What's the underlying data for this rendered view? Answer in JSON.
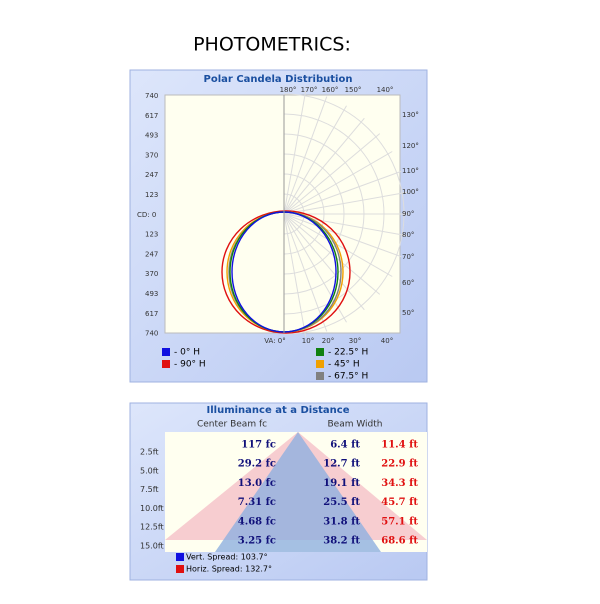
{
  "header": {
    "title": "PHOTOMETRICS:"
  },
  "polar": {
    "title": "Polar Candela Distribution",
    "top_angles": [
      "180°",
      "170°",
      "160°",
      "150°",
      "140°"
    ],
    "cd_labels": [
      "740",
      "617",
      "493",
      "370",
      "247",
      "123",
      "CD: 0",
      "123",
      "247",
      "370",
      "493",
      "617",
      "740"
    ],
    "right_angles": [
      "130°",
      "120°",
      "110°",
      "100°",
      "90°",
      "80°",
      "70°",
      "60°",
      "50°"
    ],
    "bottom_angles": [
      "VA: 0°",
      "10°",
      "20°",
      "30°",
      "40°"
    ],
    "legend": [
      {
        "label": "- 0° H",
        "color": "#1010e0"
      },
      {
        "label": "- 90° H",
        "color": "#e01010"
      },
      {
        "label": "- 22.5° H",
        "color": "#108010"
      },
      {
        "label": "- 45° H",
        "color": "#f0a000"
      },
      {
        "label": "- 67.5° H",
        "color": "#808080"
      }
    ]
  },
  "illuminance": {
    "title": "Illuminance at a Distance",
    "col_center": "Center Beam fc",
    "col_width": "Beam Width",
    "distances": [
      "2.5ft",
      "5.0ft",
      "7.5ft",
      "10.0ft",
      "12.5ft",
      "15.0ft"
    ],
    "rows": [
      [
        "117 fc",
        "6.4 ft",
        "11.4 ft"
      ],
      [
        "29.2 fc",
        "12.7 ft",
        "22.9 ft"
      ],
      [
        "13.0 fc",
        "19.1 ft",
        "34.3 ft"
      ],
      [
        "7.31 fc",
        "25.5 ft",
        "45.7 ft"
      ],
      [
        "4.68 fc",
        "31.8 ft",
        "57.1 ft"
      ],
      [
        "3.25 fc",
        "38.2 ft",
        "68.6 ft"
      ]
    ],
    "legend": [
      {
        "label": "Vert. Spread: 103.7°",
        "color": "#1010e0"
      },
      {
        "label": "Horiz. Spread: 132.7°",
        "color": "#e01010"
      }
    ]
  }
}
